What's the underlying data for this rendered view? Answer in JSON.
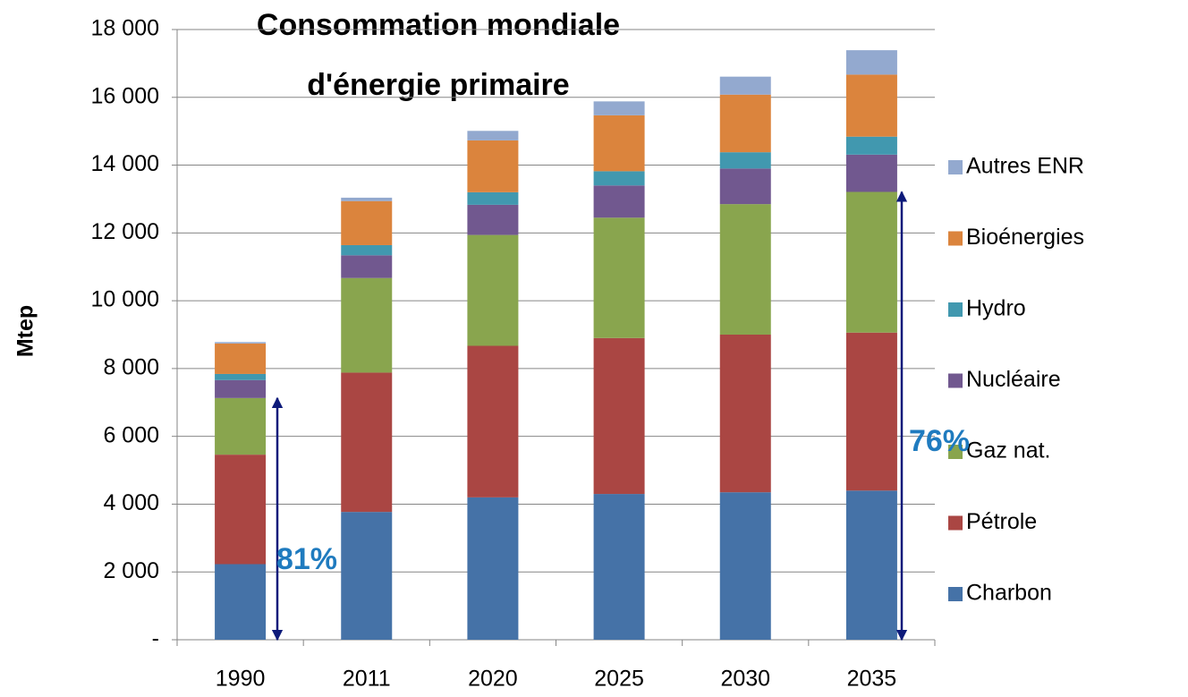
{
  "chart_data": {
    "type": "stacked_bar",
    "title": [
      "Consommation mondiale",
      "d'énergie primaire"
    ],
    "y_label": "Mtep",
    "categories": [
      "1990",
      "2011",
      "2020",
      "2025",
      "2030",
      "2035"
    ],
    "series": [
      {
        "name": "Charbon",
        "color": "#4572a7",
        "values": [
          2230,
          3770,
          4200,
          4300,
          4350,
          4400
        ]
      },
      {
        "name": "Pétrole",
        "color": "#aa4643",
        "values": [
          3230,
          4110,
          4470,
          4600,
          4650,
          4660
        ]
      },
      {
        "name": "Gaz nat.",
        "color": "#89a54e",
        "values": [
          1670,
          2790,
          3270,
          3550,
          3850,
          4150
        ]
      },
      {
        "name": "Nucléaire",
        "color": "#71588f",
        "values": [
          530,
          670,
          890,
          950,
          1050,
          1100
        ]
      },
      {
        "name": "Hydro",
        "color": "#4198af",
        "values": [
          180,
          300,
          370,
          420,
          480,
          530
        ]
      },
      {
        "name": "Bioénergies",
        "color": "#db843d",
        "values": [
          900,
          1300,
          1530,
          1650,
          1700,
          1830
        ]
      },
      {
        "name": "Autres ENR",
        "color": "#93a9cf",
        "values": [
          40,
          100,
          280,
          410,
          530,
          720
        ]
      }
    ],
    "ylim": [
      0,
      18000
    ],
    "yticks": [
      {
        "value": 0,
        "label": "-"
      },
      {
        "value": 2000,
        "label": "2 000"
      },
      {
        "value": 4000,
        "label": "4 000"
      },
      {
        "value": 6000,
        "label": "6 000"
      },
      {
        "value": 8000,
        "label": "8 000"
      },
      {
        "value": 10000,
        "label": "10 000"
      },
      {
        "value": 12000,
        "label": "12 000"
      },
      {
        "value": 14000,
        "label": "14 000"
      },
      {
        "value": 16000,
        "label": "16 000"
      },
      {
        "value": 18000,
        "label": "18 000"
      }
    ],
    "grid": true,
    "legend": "right",
    "annotations": [
      "81%",
      "76%"
    ]
  }
}
